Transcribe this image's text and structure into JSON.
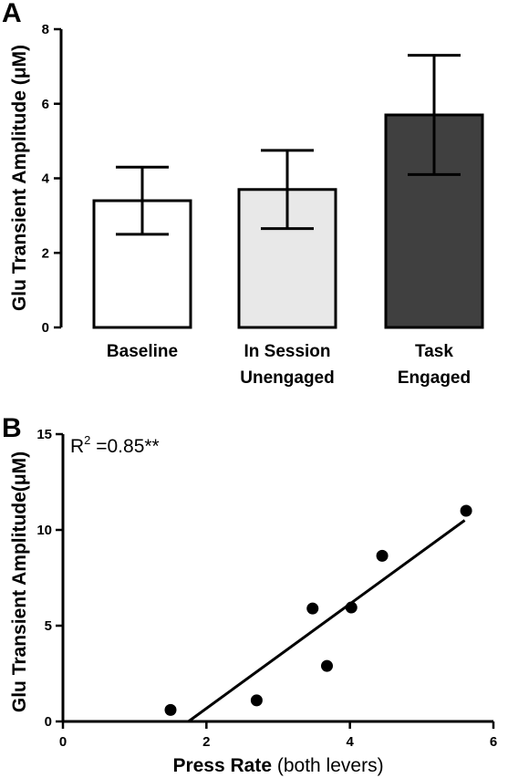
{
  "chart_data": [
    {
      "type": "bar",
      "panel_label": "A",
      "ylabel": "Glu Transient Amplitude (μM)",
      "xlabel": "",
      "ylim": [
        0,
        8
      ],
      "yticks": [
        "0",
        "2",
        "4",
        "6",
        "8"
      ],
      "categories": [
        {
          "line1": "Baseline",
          "line2": ""
        },
        {
          "line1": "In Session",
          "line2": "Unengaged"
        },
        {
          "line1": "Task",
          "line2": "Engaged"
        }
      ],
      "values": [
        3.4,
        3.7,
        5.7
      ],
      "errors": [
        0.9,
        1.05,
        1.6
      ],
      "bar_colors": [
        "#ffffff",
        "#e8e8e8",
        "#404040"
      ]
    },
    {
      "type": "scatter",
      "panel_label": "B",
      "ylabel": "Glu Transient Amplitude(μM)",
      "xlabel_bold": "Press Rate",
      "xlabel_rest": " (both levers)",
      "xlim": [
        0,
        6
      ],
      "ylim": [
        0,
        15
      ],
      "xticks": [
        "0",
        "2",
        "4",
        "6"
      ],
      "yticks": [
        "0",
        "5",
        "10",
        "15"
      ],
      "annotation_prefix": "R",
      "annotation_sup": "2",
      "annotation_suffix": " =0.85**",
      "points": [
        {
          "x": 1.5,
          "y": 0.6
        },
        {
          "x": 2.7,
          "y": 1.1
        },
        {
          "x": 3.48,
          "y": 5.9
        },
        {
          "x": 3.68,
          "y": 2.9
        },
        {
          "x": 4.02,
          "y": 5.95
        },
        {
          "x": 4.45,
          "y": 8.65
        },
        {
          "x": 5.62,
          "y": 11.0
        }
      ],
      "fit_line": {
        "x": [
          1.75,
          5.6
        ],
        "y": [
          0.0,
          10.5
        ]
      }
    }
  ]
}
